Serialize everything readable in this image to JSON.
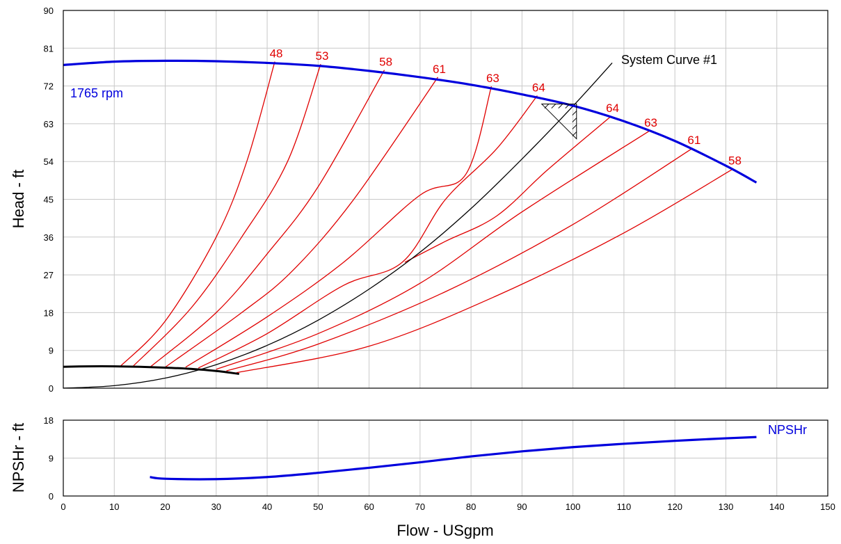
{
  "chart_data": [
    {
      "type": "line",
      "xlabel": "",
      "ylabel": "Head - ft",
      "xlim": [
        0,
        150
      ],
      "ylim": [
        0,
        90
      ],
      "x_ticks": [
        0,
        10,
        20,
        30,
        40,
        50,
        60,
        70,
        80,
        90,
        100,
        110,
        120,
        130,
        140,
        150
      ],
      "y_ticks": [
        0,
        9,
        18,
        27,
        36,
        45,
        54,
        63,
        72,
        81,
        90
      ],
      "grid": true,
      "annotations": {
        "speed": "1765 rpm",
        "system": "System Curve #1"
      },
      "pump_curve": {
        "label": "1765 rpm",
        "color": "#0000dd",
        "points": [
          [
            0,
            77
          ],
          [
            10,
            77.8
          ],
          [
            20,
            78
          ],
          [
            30,
            77.9
          ],
          [
            40,
            77.5
          ],
          [
            50,
            76.8
          ],
          [
            60,
            75.6
          ],
          [
            70,
            74.1
          ],
          [
            80,
            72.3
          ],
          [
            90,
            70
          ],
          [
            100,
            67.3
          ],
          [
            110,
            63.6
          ],
          [
            120,
            58.9
          ],
          [
            130,
            53
          ],
          [
            136,
            49
          ]
        ]
      },
      "system_curve": {
        "label": "System Curve #1",
        "color": "#000000",
        "points": [
          [
            0,
            0
          ],
          [
            10,
            0.6
          ],
          [
            20,
            2.4
          ],
          [
            30,
            5.6
          ],
          [
            40,
            10.2
          ],
          [
            50,
            16.2
          ],
          [
            60,
            23.6
          ],
          [
            70,
            32.4
          ],
          [
            80,
            42.8
          ],
          [
            90,
            54.6
          ],
          [
            100,
            67.2
          ],
          [
            107.7,
            77.5
          ]
        ]
      },
      "operating_point": {
        "x": 100.7,
        "y": 67.7
      },
      "npsh_bottom_curve": {
        "color": "#000000",
        "points": [
          [
            0,
            5.1
          ],
          [
            5,
            5.2
          ],
          [
            10,
            5.2
          ],
          [
            15,
            5.1
          ],
          [
            20,
            4.9
          ],
          [
            25,
            4.6
          ],
          [
            30,
            4.1
          ],
          [
            34.5,
            3.4
          ]
        ]
      },
      "efficiency_curves": [
        {
          "label": "48",
          "points": [
            [
              11,
              5
            ],
            [
              20,
              16
            ],
            [
              30,
              36
            ],
            [
              36,
              54
            ],
            [
              41.5,
              77.8
            ]
          ]
        },
        {
          "label": "53",
          "points": [
            [
              13.5,
              5
            ],
            [
              25,
              19
            ],
            [
              35,
              36
            ],
            [
              44,
              54
            ],
            [
              50.5,
              77.2
            ]
          ]
        },
        {
          "label": "58",
          "points": [
            [
              17,
              5
            ],
            [
              30,
              18
            ],
            [
              40,
              32
            ],
            [
              50,
              48
            ],
            [
              63,
              75.8
            ]
          ]
        },
        {
          "label": "61",
          "points": [
            [
              20,
              5
            ],
            [
              35,
              18
            ],
            [
              45,
              28
            ],
            [
              57,
              45
            ],
            [
              73.5,
              74.1
            ]
          ]
        },
        {
          "label": "63",
          "points": [
            [
              24,
              5
            ],
            [
              40,
              17
            ],
            [
              55,
              30
            ],
            [
              70,
              46
            ],
            [
              79,
              51
            ],
            [
              84,
              71.9
            ]
          ]
        },
        {
          "label": "64",
          "points": [
            [
              26.5,
              4.8
            ],
            [
              40,
              13
            ],
            [
              55,
              24.5
            ],
            [
              66.5,
              30
            ],
            [
              75,
              45
            ],
            [
              85,
              57
            ],
            [
              93,
              69.7
            ]
          ]
        },
        {
          "label": "64",
          "points": [
            [
              67,
              30
            ],
            [
              75,
              35
            ],
            [
              85,
              41
            ],
            [
              95,
              52
            ],
            [
              107.5,
              64.8
            ]
          ]
        },
        {
          "label": "63",
          "points": [
            [
              30,
              4.5
            ],
            [
              50,
              13
            ],
            [
              70,
              25
            ],
            [
              90,
              42
            ],
            [
              115,
              61.3
            ]
          ]
        },
        {
          "label": "61",
          "points": [
            [
              32,
              4.1
            ],
            [
              50,
              10.5
            ],
            [
              75,
              23
            ],
            [
              100,
              39
            ],
            [
              123.5,
              57.2
            ]
          ]
        },
        {
          "label": "58",
          "points": [
            [
              34,
              3.7
            ],
            [
              60,
              10
            ],
            [
              85,
              22
            ],
            [
              110,
              37
            ],
            [
              131.5,
              52.3
            ]
          ]
        }
      ],
      "efficiency_labels": [
        "48",
        "53",
        "58",
        "61",
        "63",
        "64",
        "64",
        "63",
        "61",
        "58"
      ]
    },
    {
      "type": "line",
      "xlabel": "Flow - USgpm",
      "ylabel": "NPSHr - ft",
      "xlim": [
        0,
        150
      ],
      "ylim": [
        0,
        18
      ],
      "x_ticks": [
        0,
        10,
        20,
        30,
        40,
        50,
        60,
        70,
        80,
        90,
        100,
        110,
        120,
        130,
        140,
        150
      ],
      "y_ticks": [
        0,
        9,
        18
      ],
      "grid": true,
      "series": [
        {
          "name": "NPSHr",
          "color": "#0000dd",
          "points": [
            [
              17,
              4.5
            ],
            [
              20,
              4.1
            ],
            [
              30,
              4.0
            ],
            [
              40,
              4.5
            ],
            [
              50,
              5.5
            ],
            [
              60,
              6.7
            ],
            [
              70,
              8.0
            ],
            [
              80,
              9.4
            ],
            [
              90,
              10.6
            ],
            [
              100,
              11.6
            ],
            [
              110,
              12.4
            ],
            [
              120,
              13.1
            ],
            [
              130,
              13.7
            ],
            [
              136,
              14.0
            ]
          ]
        }
      ]
    }
  ]
}
